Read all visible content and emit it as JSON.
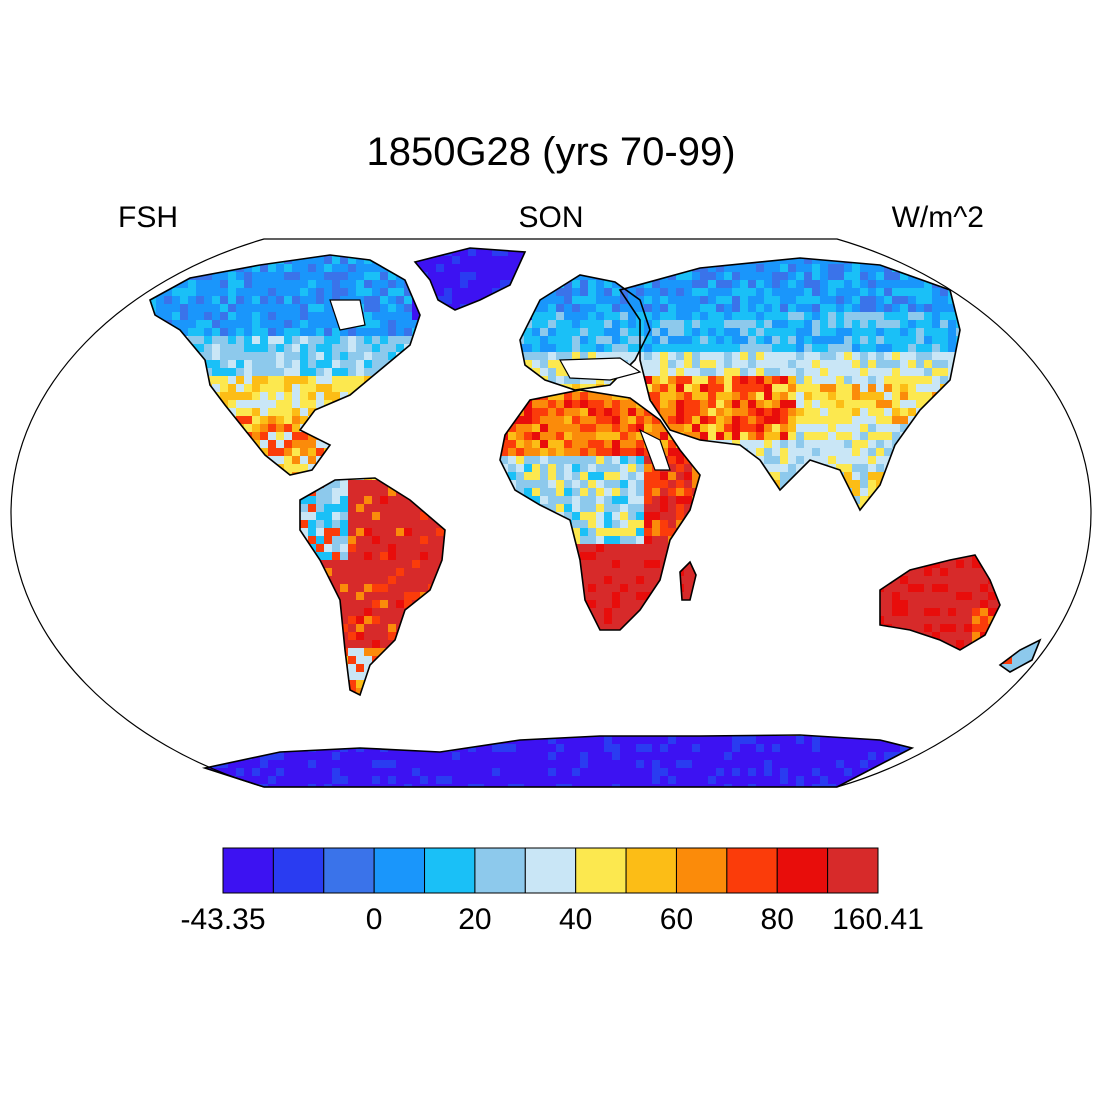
{
  "title": "1850G28 (yrs 70-99)",
  "left_label": "FSH",
  "center_label": "SON",
  "right_label": "W/m^2",
  "colorbar": {
    "colors": [
      "#3d12f2",
      "#2a3cf1",
      "#3a73ea",
      "#1a96fb",
      "#1ac0f7",
      "#8dc9ec",
      "#c9e6f6",
      "#fce84f",
      "#fcbd16",
      "#fb8b0a",
      "#fb3c0a",
      "#e80d0b",
      "#d72a2a"
    ],
    "labels": [
      {
        "text": "-43.35",
        "boundary": 0
      },
      {
        "text": "0",
        "boundary": 3
      },
      {
        "text": "20",
        "boundary": 5
      },
      {
        "text": "40",
        "boundary": 7
      },
      {
        "text": "60",
        "boundary": 9
      },
      {
        "text": "80",
        "boundary": 11
      },
      {
        "text": "160.41",
        "boundary": 13
      }
    ]
  },
  "map": {
    "projection": "Robinson",
    "ocean_color": "#ffffff",
    "land_regions": [
      {
        "name": "north-america",
        "levels": [
          3,
          3,
          4,
          4,
          5,
          6,
          7,
          8,
          9,
          10,
          7,
          6
        ]
      },
      {
        "name": "greenland",
        "levels": [
          0,
          0,
          1
        ]
      },
      {
        "name": "south-america",
        "levels": [
          12,
          12,
          11,
          10,
          9,
          12,
          8,
          6,
          5,
          4
        ]
      },
      {
        "name": "europe",
        "levels": [
          3,
          2,
          4,
          5,
          6,
          7
        ]
      },
      {
        "name": "asia",
        "levels": [
          3,
          4,
          5,
          6,
          7,
          8,
          9,
          10,
          11,
          6,
          5,
          7
        ]
      },
      {
        "name": "africa",
        "levels": [
          8,
          9,
          10,
          11,
          12,
          6,
          5,
          12,
          12,
          11
        ]
      },
      {
        "name": "australia",
        "levels": [
          12,
          12,
          11,
          10,
          9,
          12
        ]
      },
      {
        "name": "antarctica",
        "levels": [
          0,
          0,
          1
        ]
      }
    ]
  }
}
